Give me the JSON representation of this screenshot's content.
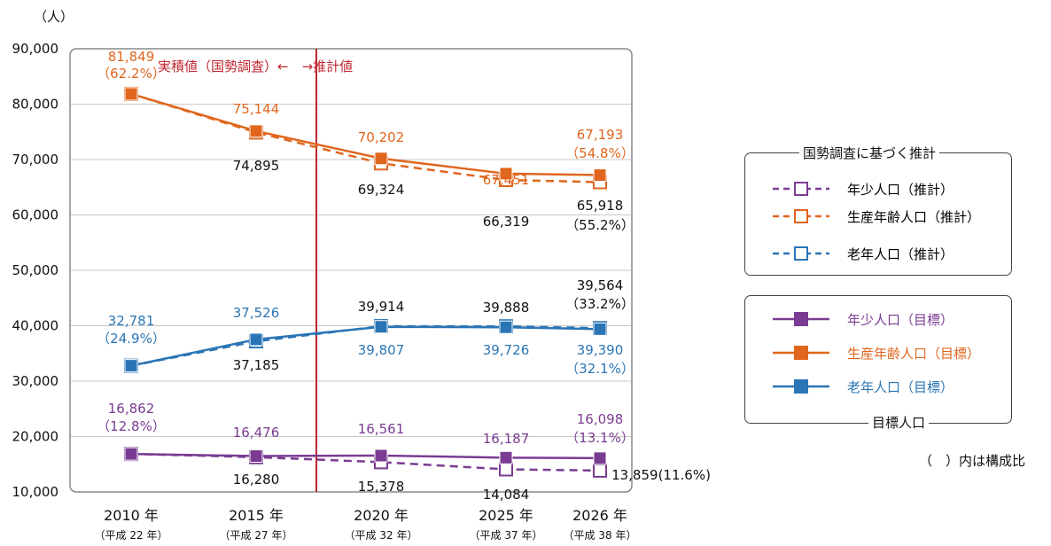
{
  "chart_data": {
    "type": "line",
    "y_unit": "（人）",
    "ylim": [
      10000,
      90000
    ],
    "yticks": [
      "10,000",
      "20,000",
      "30,000",
      "40,000",
      "50,000",
      "60,000",
      "70,000",
      "80,000",
      "90,000"
    ],
    "categories": [
      "2010 年",
      "2015 年",
      "2020 年",
      "2025 年",
      "2026 年"
    ],
    "category_subs": [
      "（平成 22 年）",
      "（平成 27 年）",
      "（平成 32 年）",
      "（平成 37 年）",
      "（平成 38 年）"
    ],
    "divider_text": "実積値（国勢調査）←　→推計値",
    "colors": {
      "purple": "#7a3c92",
      "orange": "#e0661e",
      "blue": "#2a75b5",
      "divider": "#c0262f"
    },
    "series": [
      {
        "name": "生産年齢人口（推計）",
        "color": "#e0661e",
        "style": "dashed",
        "marker": "open",
        "values": [
          81849,
          74895,
          69324,
          66319,
          65918
        ]
      },
      {
        "name": "生産年齢人口（目標）",
        "color": "#e0661e",
        "style": "solid",
        "marker": "filled",
        "values": [
          81849,
          75144,
          70202,
          67451,
          67193
        ]
      },
      {
        "name": "老年人口（推計）",
        "color": "#2a75b5",
        "style": "dashed",
        "marker": "open",
        "values": [
          32781,
          37185,
          39914,
          39888,
          39564
        ]
      },
      {
        "name": "老年人口（目標）",
        "color": "#2a75b5",
        "style": "solid",
        "marker": "filled",
        "values": [
          32781,
          37526,
          39807,
          39726,
          39390
        ]
      },
      {
        "name": "年少人口（推計）",
        "color": "#7a3c92",
        "style": "dashed",
        "marker": "open",
        "values": [
          16862,
          16280,
          15378,
          14084,
          13859
        ]
      },
      {
        "name": "年少人口（目標）",
        "color": "#7a3c92",
        "style": "solid",
        "marker": "filled",
        "values": [
          16862,
          16476,
          16561,
          16187,
          16098
        ]
      }
    ],
    "data_labels": [
      {
        "text": "81,849",
        "color": "#e0661e"
      },
      {
        "text": "（62.2%）",
        "color": "#e0661e"
      },
      {
        "text": "75,144",
        "color": "#e0661e"
      },
      {
        "text": "74,895",
        "color": "#111111"
      },
      {
        "text": "70,202",
        "color": "#e0661e"
      },
      {
        "text": "69,324",
        "color": "#111111"
      },
      {
        "text": "67,451",
        "color": "#e0661e"
      },
      {
        "text": "66,319",
        "color": "#111111"
      },
      {
        "text": "67,193",
        "color": "#e0661e"
      },
      {
        "text": "（54.8%）",
        "color": "#e0661e"
      },
      {
        "text": "65,918",
        "color": "#111111"
      },
      {
        "text": "（55.2%）",
        "color": "#111111"
      },
      {
        "text": "32,781",
        "color": "#2a75b5"
      },
      {
        "text": "（24.9%）",
        "color": "#2a75b5"
      },
      {
        "text": "37,526",
        "color": "#2a75b5"
      },
      {
        "text": "37,185",
        "color": "#111111"
      },
      {
        "text": "39,914",
        "color": "#111111"
      },
      {
        "text": "39,807",
        "color": "#2a75b5"
      },
      {
        "text": "39,888",
        "color": "#111111"
      },
      {
        "text": "39,726",
        "color": "#2a75b5"
      },
      {
        "text": "39,564",
        "color": "#111111"
      },
      {
        "text": "（33.2%）",
        "color": "#111111"
      },
      {
        "text": "39,390",
        "color": "#2a75b5"
      },
      {
        "text": "（32.1%）",
        "color": "#2a75b5"
      },
      {
        "text": "16,862",
        "color": "#7a3c92"
      },
      {
        "text": "（12.8%）",
        "color": "#7a3c92"
      },
      {
        "text": "16,476",
        "color": "#7a3c92"
      },
      {
        "text": "16,280",
        "color": "#111111"
      },
      {
        "text": "16,561",
        "color": "#7a3c92"
      },
      {
        "text": "15,378",
        "color": "#111111"
      },
      {
        "text": "16,187",
        "color": "#7a3c92"
      },
      {
        "text": "14,084",
        "color": "#111111"
      },
      {
        "text": "16,098",
        "color": "#7a3c92"
      },
      {
        "text": "（13.1%）",
        "color": "#7a3c92"
      },
      {
        "text": "13,859(11.6%)",
        "color": "#111111"
      }
    ]
  },
  "legend": {
    "projection_title": "国勢調査に基づく推計",
    "projection_items": [
      {
        "label": "年少人口（推計）",
        "color": "#7a3c92"
      },
      {
        "label": "生産年齢人口（推計）",
        "color": "#e0661e"
      },
      {
        "label": "老年人口（推計）",
        "color": "#2a75b5"
      }
    ],
    "target_title": "目標人口",
    "target_items": [
      {
        "label": "年少人口（目標）",
        "color": "#7a3c92"
      },
      {
        "label": "生産年齢人口（目標）",
        "color": "#e0661e"
      },
      {
        "label": "老年人口（目標）",
        "color": "#2a75b5"
      }
    ]
  },
  "note": "（　）内は構成比"
}
